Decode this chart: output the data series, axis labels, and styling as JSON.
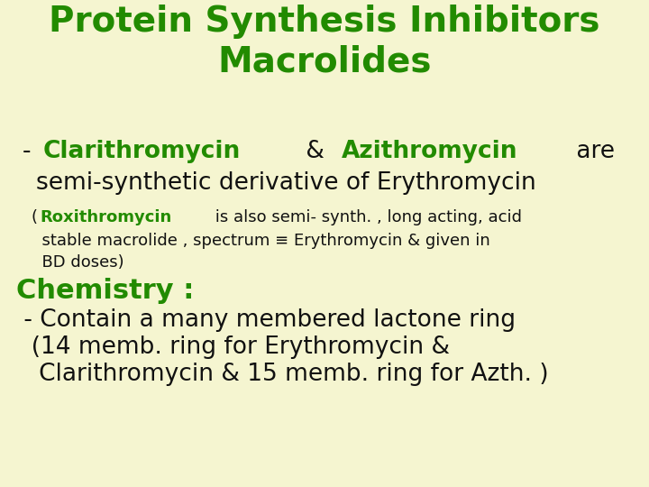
{
  "bg_color": "#f5f5d0",
  "title_line1": "Protein Synthesis Inhibitors",
  "title_line2": "Macrolides",
  "title_color": "#228B00",
  "title_fontsize": 28,
  "green_color": "#228B00",
  "dark_color": "#111111",
  "line2_parts": [
    {
      "text": "- ",
      "color": "#111111",
      "bold": false,
      "size": 19
    },
    {
      "text": "Clarithromycin",
      "color": "#228B00",
      "bold": true,
      "size": 19
    },
    {
      "text": " & ",
      "color": "#111111",
      "bold": false,
      "size": 19
    },
    {
      "text": "Azithromycin",
      "color": "#228B00",
      "bold": true,
      "size": 19
    },
    {
      "text": " are",
      "color": "#111111",
      "bold": false,
      "size": 19
    }
  ],
  "line3": "semi-synthetic derivative of Erythromycin",
  "line3_color": "#111111",
  "line3_fontsize": 19,
  "rox_parts": [
    {
      "text": "(",
      "color": "#111111",
      "bold": false,
      "size": 13
    },
    {
      "text": "Roxithromycin",
      "color": "#228B00",
      "bold": true,
      "size": 13
    },
    {
      "text": " is also semi- synth. , long acting, acid",
      "color": "#111111",
      "bold": false,
      "size": 13
    }
  ],
  "rox_line2": "  stable macrolide , spectrum ≡ Erythromycin & given in",
  "rox_line3": "  BD doses)",
  "rox_fontsize": 13,
  "chemistry_label": "Chemistry :",
  "chemistry_color": "#228B00",
  "chemistry_fontsize": 22,
  "chem_line1": " - Contain a many membered lactone ring",
  "chem_line2": "  (14 memb. ring for Erythromycin &",
  "chem_line3": "   Clarithromycin & 15 memb. ring for Azth. )",
  "chem_fontsize": 19,
  "chem_color": "#111111"
}
